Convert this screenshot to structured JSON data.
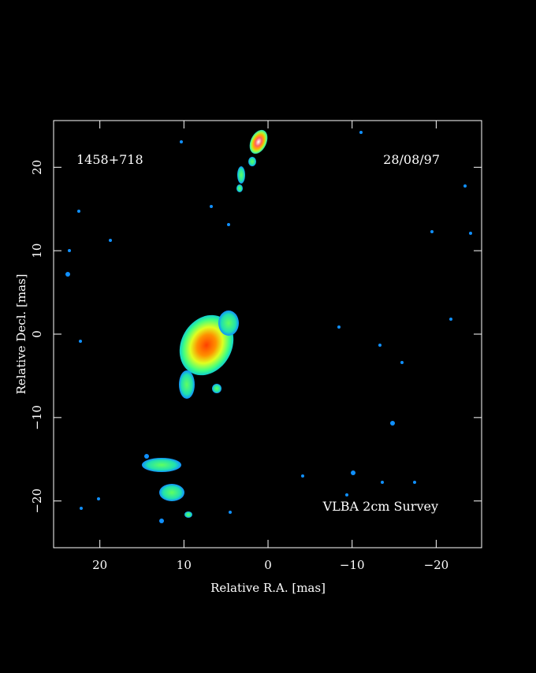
{
  "chart_data": {
    "type": "image",
    "xlabel": "Relative R.A. [mas]",
    "ylabel": "Relative Decl. [mas]",
    "annotations": [
      "1458+718",
      "28/08/97",
      "VLBA 2cm Survey"
    ],
    "xlim": [
      25.5,
      -25.4
    ],
    "ylim": [
      -25.6,
      25.6
    ],
    "xticks": [
      20,
      10,
      0,
      {
        "value": -10,
        "label": "−10"
      },
      {
        "value": -20,
        "label": "−20"
      }
    ],
    "yticks": [
      {
        "value": -20,
        "label": "−20"
      },
      {
        "value": -10,
        "label": "−10"
      },
      0,
      10,
      20
    ]
  }
}
